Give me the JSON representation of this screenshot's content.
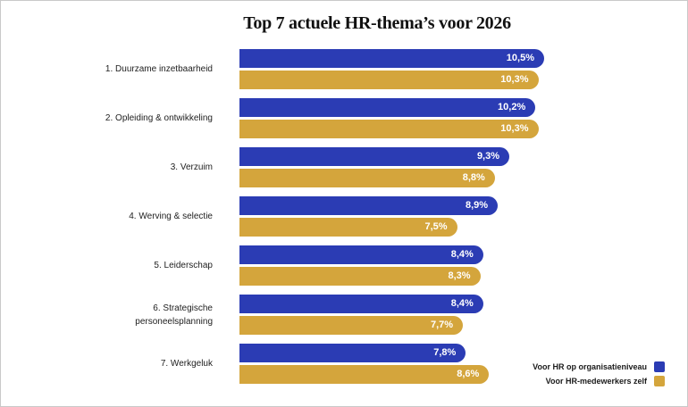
{
  "page": {
    "background": "#FFFFFF",
    "border_color": "#C9C9C9"
  },
  "chart_data": {
    "type": "bar",
    "orientation": "horizontal",
    "title": "Top 7 actuele HR-thema’s voor 2026",
    "categories": [
      "1. Duurzame inzetbaarheid",
      "2. Opleiding & ontwikkeling",
      "3. Verzuim",
      "4. Werving & selectie",
      "5. Leiderschap",
      "6. Strategische\npersoneelsplanning",
      "7. Werkgeluk"
    ],
    "series": [
      {
        "name": "Voor HR op organisatieniveau",
        "color": "#2B3CB4",
        "values": [
          10.5,
          10.2,
          9.3,
          8.9,
          8.4,
          8.4,
          7.8
        ],
        "labels": [
          "10,5%",
          "10,2%",
          "9,3%",
          "8,9%",
          "8,4%",
          "8,4%",
          "7,8%"
        ]
      },
      {
        "name": "Voor HR-medewerkers zelf",
        "color": "#D4A53C",
        "values": [
          10.3,
          10.3,
          8.8,
          7.5,
          8.3,
          7.7,
          8.6
        ],
        "labels": [
          "10,3%",
          "10,3%",
          "8,8%",
          "7,5%",
          "8,3%",
          "7,7%",
          "8,6%"
        ]
      }
    ],
    "xlim": [
      0,
      10.5
    ],
    "grid": false,
    "legend_position": "bottom-right",
    "value_format": "percent-comma-decimal"
  },
  "legend": {
    "items": [
      {
        "label": "Voor HR op organisatieniveau",
        "color": "#2B3CB4"
      },
      {
        "label": "Voor HR-medewerkers zelf",
        "color": "#D4A53C"
      }
    ]
  }
}
